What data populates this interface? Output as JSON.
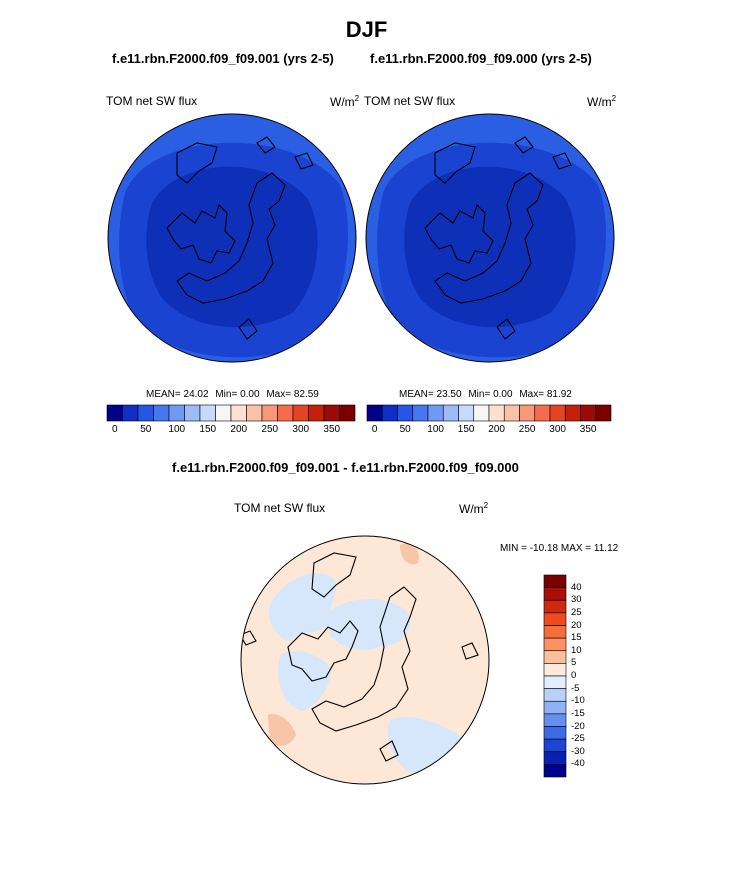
{
  "season_title": "DJF",
  "panels": [
    {
      "case_title": "f.e11.rbn.F2000.f09_f09.001 (yrs 2-5)",
      "variable": "TOM net SW flux",
      "units": "W/m",
      "units_exp": "2",
      "stats": {
        "mean_label": "MEAN=",
        "mean": "24.02",
        "min_label": "Min=",
        "min": "0.00",
        "max_label": "Max=",
        "max": "82.59"
      }
    },
    {
      "case_title": "f.e11.rbn.F2000.f09_f09.000 (yrs 2-5)",
      "variable": "TOM net SW flux",
      "units": "W/m",
      "units_exp": "2",
      "stats": {
        "mean_label": "MEAN=",
        "mean": "23.50",
        "min_label": "Min=",
        "min": "0.00",
        "max_label": "Max=",
        "max": "81.92"
      }
    }
  ],
  "abs_colorbar": {
    "ticks": [
      "0",
      "50",
      "100",
      "150",
      "200",
      "250",
      "300",
      "350"
    ],
    "colors": [
      "#00008a",
      "#0d2fc8",
      "#2755e6",
      "#4676f0",
      "#6e99f4",
      "#9bbcf8",
      "#c6dbfb",
      "#f6f6f6",
      "#fde0cf",
      "#fcc1a6",
      "#f99879",
      "#f46c4b",
      "#e54424",
      "#c5200c",
      "#9b0a04",
      "#7a0000"
    ]
  },
  "diff_panel": {
    "title": "f.e11.rbn.F2000.f09_f09.001 - f.e11.rbn.F2000.f09_f09.000",
    "variable": "TOM net SW flux",
    "units": "W/m",
    "units_exp": "2",
    "range_text": "MIN = -10.18 MAX = 11.12"
  },
  "diff_colorbar": {
    "labels": [
      "40",
      "30",
      "25",
      "20",
      "15",
      "10",
      "5",
      "0",
      "-5",
      "-10",
      "-15",
      "-20",
      "-25",
      "-30",
      "-40"
    ],
    "colors": [
      "#7a0000",
      "#a80f05",
      "#d02a0e",
      "#ee4a1f",
      "#f76d3c",
      "#fa9363",
      "#fcbf9b",
      "#feeadb",
      "#e3eefc",
      "#b8d1f8",
      "#8eb2f4",
      "#6690ef",
      "#3d6be8",
      "#1c44d6",
      "#0a20b0",
      "#00008a"
    ]
  },
  "map_colors": {
    "outer_ring": "#2a5fe4",
    "middle_ring": "#1a43d2",
    "inner_core": "#0e2fb8",
    "diff_base": "#fde7d6",
    "diff_negative": "#d6e7fb",
    "diff_positive": "#f8c5a8",
    "coastline": "#000000"
  }
}
